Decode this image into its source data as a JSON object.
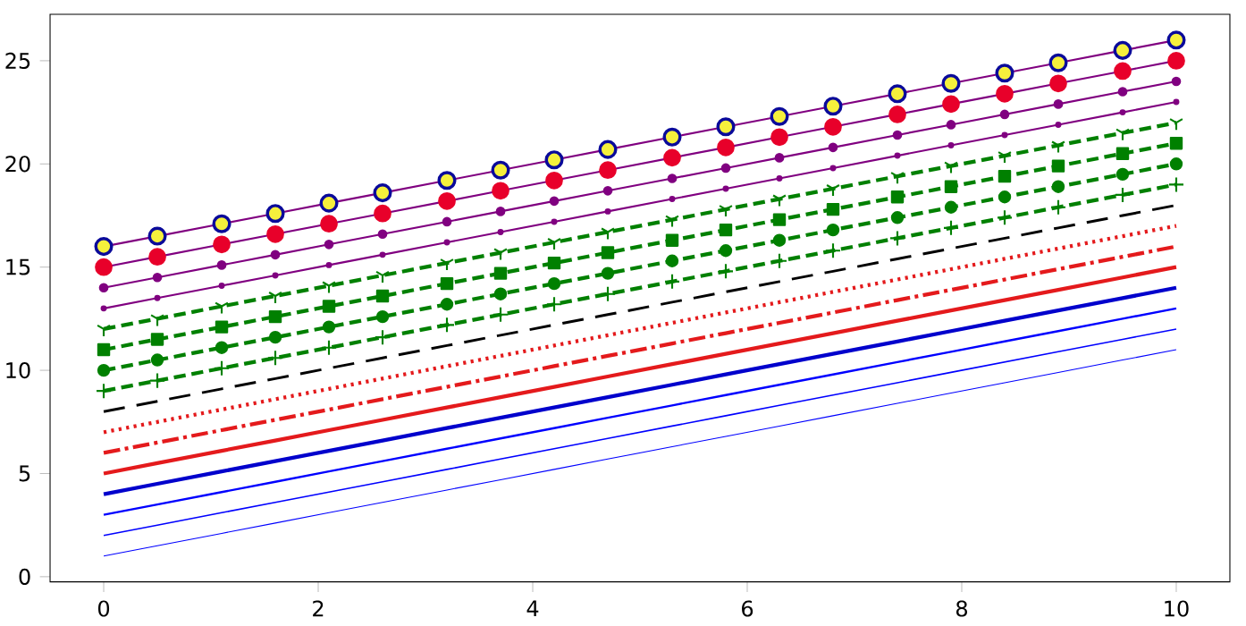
{
  "chart_data": {
    "type": "line",
    "x": [
      0,
      0.5,
      1.1,
      1.6,
      2.1,
      2.6,
      3.2,
      3.7,
      4.2,
      4.7,
      5.3,
      5.8,
      6.3,
      6.8,
      7.4,
      7.9,
      8.4,
      8.9,
      9.5,
      10
    ],
    "xlim": [
      -0.5,
      10.5
    ],
    "ylim": [
      -0.25,
      27.25
    ],
    "xticks": [
      0,
      2,
      4,
      6,
      8,
      10
    ],
    "yticks": [
      0,
      5,
      10,
      15,
      20,
      25
    ],
    "grid": false,
    "series": [
      {
        "color": "#0000ff",
        "line_style": "solid",
        "marker": "none",
        "values": [
          1,
          1.5,
          2.1,
          2.6,
          3.1,
          3.6,
          4.2,
          4.7,
          5.2,
          5.7,
          6.3,
          6.8,
          7.3,
          7.8,
          8.4,
          8.9,
          9.4,
          9.9,
          10.5,
          11
        ]
      },
      {
        "color": "#0000ff",
        "line_style": "solid",
        "marker": "none",
        "values": [
          2,
          2.5,
          3.1,
          3.6,
          4.1,
          4.6,
          5.2,
          5.7,
          6.2,
          6.7,
          7.3,
          7.8,
          8.3,
          8.8,
          9.4,
          9.9,
          10.4,
          10.9,
          11.5,
          12
        ]
      },
      {
        "color": "#0000ff",
        "line_style": "solid",
        "marker": "none",
        "values": [
          3,
          3.5,
          4.1,
          4.6,
          5.1,
          5.6,
          6.2,
          6.7,
          7.2,
          7.7,
          8.3,
          8.8,
          9.3,
          9.8,
          10.4,
          10.9,
          11.4,
          11.9,
          12.5,
          13
        ]
      },
      {
        "color": "#0000cc",
        "line_style": "solid",
        "marker": "none",
        "values": [
          4,
          4.5,
          5.1,
          5.6,
          6.1,
          6.6,
          7.2,
          7.7,
          8.2,
          8.7,
          9.3,
          9.8,
          10.3,
          10.8,
          11.4,
          11.9,
          12.4,
          12.9,
          13.5,
          14
        ]
      },
      {
        "color": "#e41a1c",
        "line_style": "solid",
        "marker": "none",
        "values": [
          5,
          5.5,
          6.1,
          6.6,
          7.1,
          7.6,
          8.2,
          8.7,
          9.2,
          9.7,
          10.3,
          10.8,
          11.3,
          11.8,
          12.4,
          12.9,
          13.4,
          13.9,
          14.5,
          15
        ]
      },
      {
        "color": "#e41a1c",
        "line_style": "dashdot",
        "marker": "none",
        "values": [
          6,
          6.5,
          7.1,
          7.6,
          8.1,
          8.6,
          9.2,
          9.7,
          10.2,
          10.7,
          11.3,
          11.8,
          12.3,
          12.8,
          13.4,
          13.9,
          14.4,
          14.9,
          15.5,
          16
        ]
      },
      {
        "color": "#e41a1c",
        "line_style": "dotted",
        "marker": "none",
        "values": [
          7,
          7.5,
          8.1,
          8.6,
          9.1,
          9.6,
          10.2,
          10.7,
          11.2,
          11.7,
          12.3,
          12.8,
          13.3,
          13.8,
          14.4,
          14.9,
          15.4,
          15.9,
          16.5,
          17
        ]
      },
      {
        "color": "#000000",
        "line_style": "dashed",
        "marker": "none",
        "values": [
          8,
          8.5,
          9.1,
          9.6,
          10.1,
          10.6,
          11.2,
          11.7,
          12.2,
          12.7,
          13.3,
          13.8,
          14.3,
          14.8,
          15.4,
          15.9,
          16.4,
          16.9,
          17.5,
          18
        ]
      },
      {
        "color": "#008000",
        "line_style": "dashed",
        "marker": "cross",
        "values": [
          9,
          9.5,
          10.1,
          10.6,
          11.1,
          11.6,
          12.2,
          12.7,
          13.2,
          13.7,
          14.3,
          14.8,
          15.3,
          15.8,
          16.4,
          16.9,
          17.4,
          17.9,
          18.5,
          19
        ]
      },
      {
        "color": "#008000",
        "line_style": "dashed",
        "marker": "circle",
        "values": [
          10,
          10.5,
          11.1,
          11.6,
          12.1,
          12.6,
          13.2,
          13.7,
          14.2,
          14.7,
          15.3,
          15.8,
          16.3,
          16.8,
          17.4,
          17.9,
          18.4,
          18.9,
          19.5,
          20
        ]
      },
      {
        "color": "#008000",
        "line_style": "dashed",
        "marker": "square",
        "values": [
          11,
          11.5,
          12.1,
          12.6,
          13.1,
          13.6,
          14.2,
          14.7,
          15.2,
          15.7,
          16.3,
          16.8,
          17.3,
          17.8,
          18.4,
          18.9,
          19.4,
          19.9,
          20.5,
          21
        ]
      },
      {
        "color": "#008000",
        "line_style": "dashed",
        "marker": "cross",
        "values": [
          12,
          12.5,
          13.1,
          13.6,
          14.1,
          14.6,
          15.2,
          15.7,
          16.2,
          16.7,
          17.3,
          17.8,
          18.3,
          18.8,
          19.4,
          19.9,
          20.4,
          20.9,
          21.5,
          22
        ]
      },
      {
        "color": "#800080",
        "line_style": "solid",
        "marker": "circle",
        "values": [
          13,
          13.5,
          14.1,
          14.6,
          15.1,
          15.6,
          16.2,
          16.7,
          17.2,
          17.7,
          18.3,
          18.8,
          19.3,
          19.8,
          20.4,
          20.9,
          21.4,
          21.9,
          22.5,
          23
        ]
      },
      {
        "color": "#800080",
        "line_style": "solid",
        "marker": "circle",
        "values": [
          14,
          14.5,
          15.1,
          15.6,
          16.1,
          16.6,
          17.2,
          17.7,
          18.2,
          18.7,
          19.3,
          19.8,
          20.3,
          20.8,
          21.4,
          21.9,
          22.4,
          22.9,
          23.5,
          24
        ]
      },
      {
        "color": "#800080",
        "line_style": "solid",
        "marker": "circle",
        "values": [
          15,
          15.5,
          16.1,
          16.6,
          17.1,
          17.6,
          18.2,
          18.7,
          19.2,
          19.7,
          20.3,
          20.8,
          21.3,
          21.8,
          22.4,
          22.9,
          23.4,
          23.9,
          24.5,
          25
        ]
      },
      {
        "color": "#800080",
        "line_style": "solid",
        "marker": "circle",
        "values": [
          16,
          16.5,
          17.1,
          17.6,
          18.1,
          18.6,
          19.2,
          19.7,
          20.2,
          20.7,
          21.3,
          21.8,
          22.3,
          22.8,
          23.4,
          23.9,
          24.4,
          24.9,
          25.5,
          26
        ]
      }
    ]
  }
}
